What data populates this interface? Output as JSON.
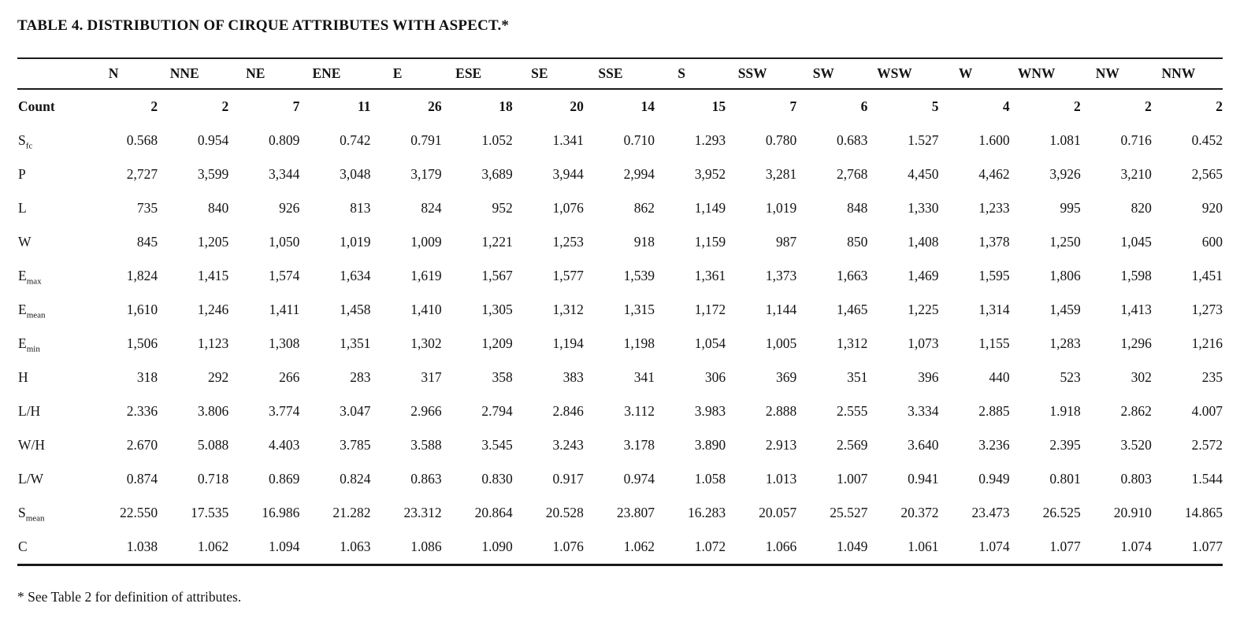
{
  "title": "TABLE 4. DISTRIBUTION OF CIRQUE ATTRIBUTES WITH ASPECT.*",
  "footnote": "* See Table 2 for definition of attributes.",
  "table": {
    "columns": [
      "N",
      "NNE",
      "NE",
      "ENE",
      "E",
      "ESE",
      "SE",
      "SSE",
      "S",
      "SSW",
      "SW",
      "WSW",
      "W",
      "WNW",
      "NW",
      "NNW"
    ],
    "rows": [
      {
        "base": "Count",
        "sub": "",
        "bold": true,
        "values": [
          "2",
          "2",
          "7",
          "11",
          "26",
          "18",
          "20",
          "14",
          "15",
          "7",
          "6",
          "5",
          "4",
          "2",
          "2",
          "2"
        ]
      },
      {
        "base": "S",
        "sub": "fc",
        "bold": false,
        "values": [
          "0.568",
          "0.954",
          "0.809",
          "0.742",
          "0.791",
          "1.052",
          "1.341",
          "0.710",
          "1.293",
          "0.780",
          "0.683",
          "1.527",
          "1.600",
          "1.081",
          "0.716",
          "0.452"
        ]
      },
      {
        "base": "P",
        "sub": "",
        "bold": false,
        "values": [
          "2,727",
          "3,599",
          "3,344",
          "3,048",
          "3,179",
          "3,689",
          "3,944",
          "2,994",
          "3,952",
          "3,281",
          "2,768",
          "4,450",
          "4,462",
          "3,926",
          "3,210",
          "2,565"
        ]
      },
      {
        "base": "L",
        "sub": "",
        "bold": false,
        "values": [
          "735",
          "840",
          "926",
          "813",
          "824",
          "952",
          "1,076",
          "862",
          "1,149",
          "1,019",
          "848",
          "1,330",
          "1,233",
          "995",
          "820",
          "920"
        ]
      },
      {
        "base": "W",
        "sub": "",
        "bold": false,
        "values": [
          "845",
          "1,205",
          "1,050",
          "1,019",
          "1,009",
          "1,221",
          "1,253",
          "918",
          "1,159",
          "987",
          "850",
          "1,408",
          "1,378",
          "1,250",
          "1,045",
          "600"
        ]
      },
      {
        "base": "E",
        "sub": "max",
        "bold": false,
        "values": [
          "1,824",
          "1,415",
          "1,574",
          "1,634",
          "1,619",
          "1,567",
          "1,577",
          "1,539",
          "1,361",
          "1,373",
          "1,663",
          "1,469",
          "1,595",
          "1,806",
          "1,598",
          "1,451"
        ]
      },
      {
        "base": "E",
        "sub": "mean",
        "bold": false,
        "values": [
          "1,610",
          "1,246",
          "1,411",
          "1,458",
          "1,410",
          "1,305",
          "1,312",
          "1,315",
          "1,172",
          "1,144",
          "1,465",
          "1,225",
          "1,314",
          "1,459",
          "1,413",
          "1,273"
        ]
      },
      {
        "base": "E",
        "sub": "min",
        "bold": false,
        "values": [
          "1,506",
          "1,123",
          "1,308",
          "1,351",
          "1,302",
          "1,209",
          "1,194",
          "1,198",
          "1,054",
          "1,005",
          "1,312",
          "1,073",
          "1,155",
          "1,283",
          "1,296",
          "1,216"
        ]
      },
      {
        "base": "H",
        "sub": "",
        "bold": false,
        "values": [
          "318",
          "292",
          "266",
          "283",
          "317",
          "358",
          "383",
          "341",
          "306",
          "369",
          "351",
          "396",
          "440",
          "523",
          "302",
          "235"
        ]
      },
      {
        "base": "L/H",
        "sub": "",
        "bold": false,
        "values": [
          "2.336",
          "3.806",
          "3.774",
          "3.047",
          "2.966",
          "2.794",
          "2.846",
          "3.112",
          "3.983",
          "2.888",
          "2.555",
          "3.334",
          "2.885",
          "1.918",
          "2.862",
          "4.007"
        ]
      },
      {
        "base": "W/H",
        "sub": "",
        "bold": false,
        "values": [
          "2.670",
          "5.088",
          "4.403",
          "3.785",
          "3.588",
          "3.545",
          "3.243",
          "3.178",
          "3.890",
          "2.913",
          "2.569",
          "3.640",
          "3.236",
          "2.395",
          "3.520",
          "2.572"
        ]
      },
      {
        "base": "L/W",
        "sub": "",
        "bold": false,
        "values": [
          "0.874",
          "0.718",
          "0.869",
          "0.824",
          "0.863",
          "0.830",
          "0.917",
          "0.974",
          "1.058",
          "1.013",
          "1.007",
          "0.941",
          "0.949",
          "0.801",
          "0.803",
          "1.544"
        ]
      },
      {
        "base": "S",
        "sub": "mean",
        "bold": false,
        "values": [
          "22.550",
          "17.535",
          "16.986",
          "21.282",
          "23.312",
          "20.864",
          "20.528",
          "23.807",
          "16.283",
          "20.057",
          "25.527",
          "20.372",
          "23.473",
          "26.525",
          "20.910",
          "14.865"
        ]
      },
      {
        "base": "C",
        "sub": "",
        "bold": false,
        "values": [
          "1.038",
          "1.062",
          "1.094",
          "1.063",
          "1.086",
          "1.090",
          "1.076",
          "1.062",
          "1.072",
          "1.066",
          "1.049",
          "1.061",
          "1.074",
          "1.077",
          "1.074",
          "1.077"
        ]
      }
    ]
  }
}
